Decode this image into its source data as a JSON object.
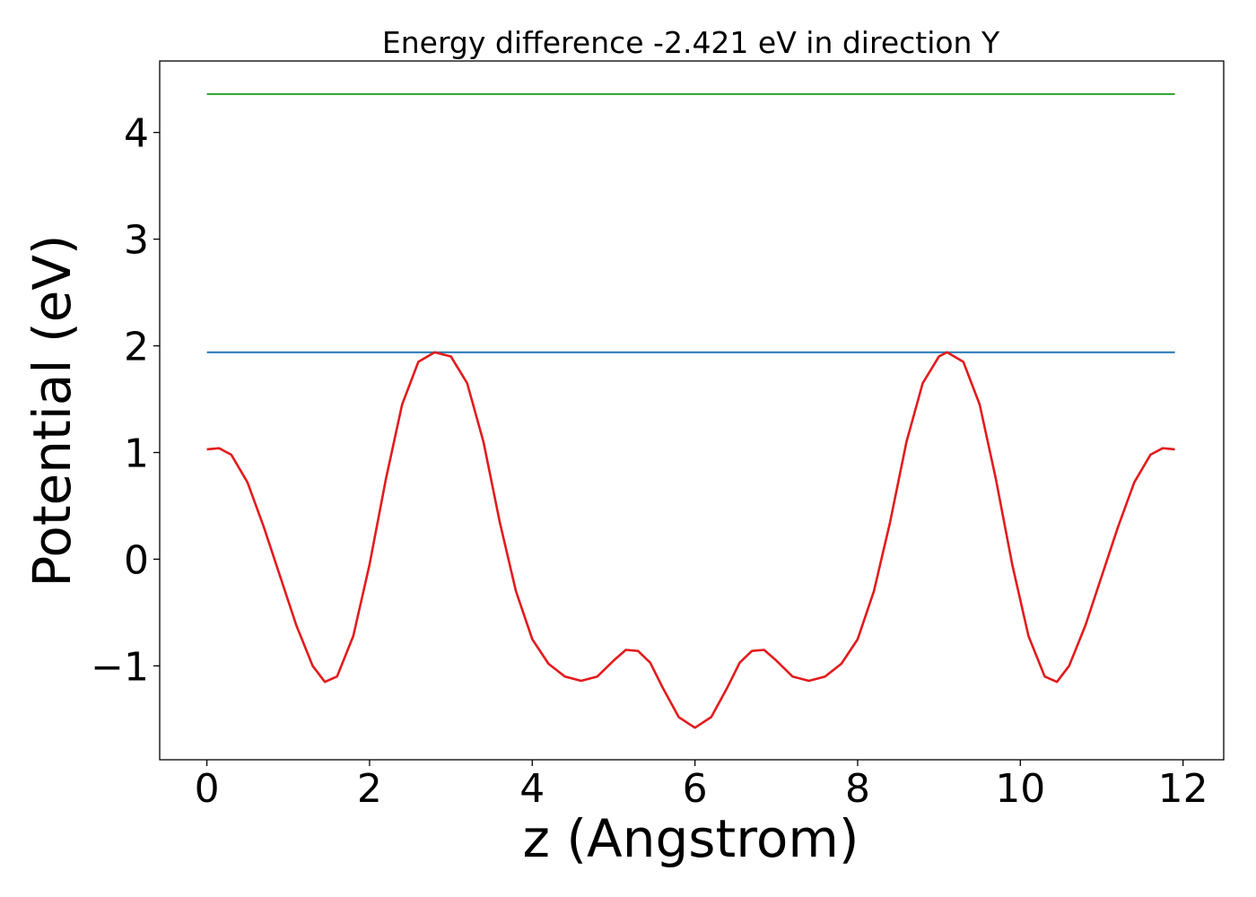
{
  "chart_data": {
    "type": "line",
    "title": "Energy difference -2.421 eV in direction Y",
    "xlabel": "z (Angstrom)",
    "ylabel": "Potential (eV)",
    "xlim": [
      -0.58,
      12.5
    ],
    "ylim": [
      -1.88,
      4.67
    ],
    "xticks": [
      0,
      2,
      4,
      6,
      8,
      10,
      12
    ],
    "xtick_labels": [
      "0",
      "2",
      "4",
      "6",
      "8",
      "10",
      "12"
    ],
    "yticks": [
      -1,
      0,
      1,
      2,
      3,
      4
    ],
    "ytick_labels": [
      "−1",
      "0",
      "1",
      "2",
      "3",
      "4"
    ],
    "grid": false,
    "series": [
      {
        "color": "#2ca02c",
        "x": [
          0,
          11.9
        ],
        "y": [
          4.36,
          4.36
        ]
      },
      {
        "color": "#1f77b4",
        "x": [
          0,
          11.9
        ],
        "y": [
          1.94,
          1.94
        ]
      },
      {
        "color": "#e31a1c",
        "x": [
          0.0,
          0.15,
          0.3,
          0.5,
          0.7,
          0.9,
          1.1,
          1.3,
          1.45,
          1.6,
          1.8,
          2.0,
          2.2,
          2.4,
          2.6,
          2.8,
          3.0,
          3.2,
          3.4,
          3.6,
          3.8,
          4.0,
          4.2,
          4.4,
          4.6,
          4.8,
          5.0,
          5.15,
          5.3,
          5.45,
          5.6,
          5.8,
          6.0,
          6.2,
          6.4,
          6.55,
          6.7,
          6.85,
          7.0,
          7.2,
          7.4,
          7.6,
          7.8,
          8.0,
          8.2,
          8.4,
          8.6,
          8.8,
          9.0,
          9.1,
          9.3,
          9.5,
          9.7,
          9.9,
          10.1,
          10.3,
          10.45,
          10.6,
          10.8,
          11.0,
          11.2,
          11.4,
          11.6,
          11.75,
          11.9
        ],
        "y": [
          1.03,
          1.04,
          0.98,
          0.72,
          0.3,
          -0.16,
          -0.62,
          -1.0,
          -1.15,
          -1.1,
          -0.72,
          -0.05,
          0.75,
          1.45,
          1.85,
          1.94,
          1.9,
          1.65,
          1.1,
          0.35,
          -0.3,
          -0.75,
          -0.98,
          -1.1,
          -1.14,
          -1.1,
          -0.95,
          -0.85,
          -0.86,
          -0.97,
          -1.2,
          -1.48,
          -1.58,
          -1.48,
          -1.2,
          -0.97,
          -0.86,
          -0.85,
          -0.95,
          -1.1,
          -1.14,
          -1.1,
          -0.98,
          -0.75,
          -0.3,
          0.35,
          1.1,
          1.65,
          1.9,
          1.94,
          1.85,
          1.45,
          0.75,
          -0.05,
          -0.72,
          -1.1,
          -1.15,
          -1.0,
          -0.62,
          -0.16,
          0.3,
          0.72,
          0.98,
          1.04,
          1.03
        ]
      }
    ]
  }
}
